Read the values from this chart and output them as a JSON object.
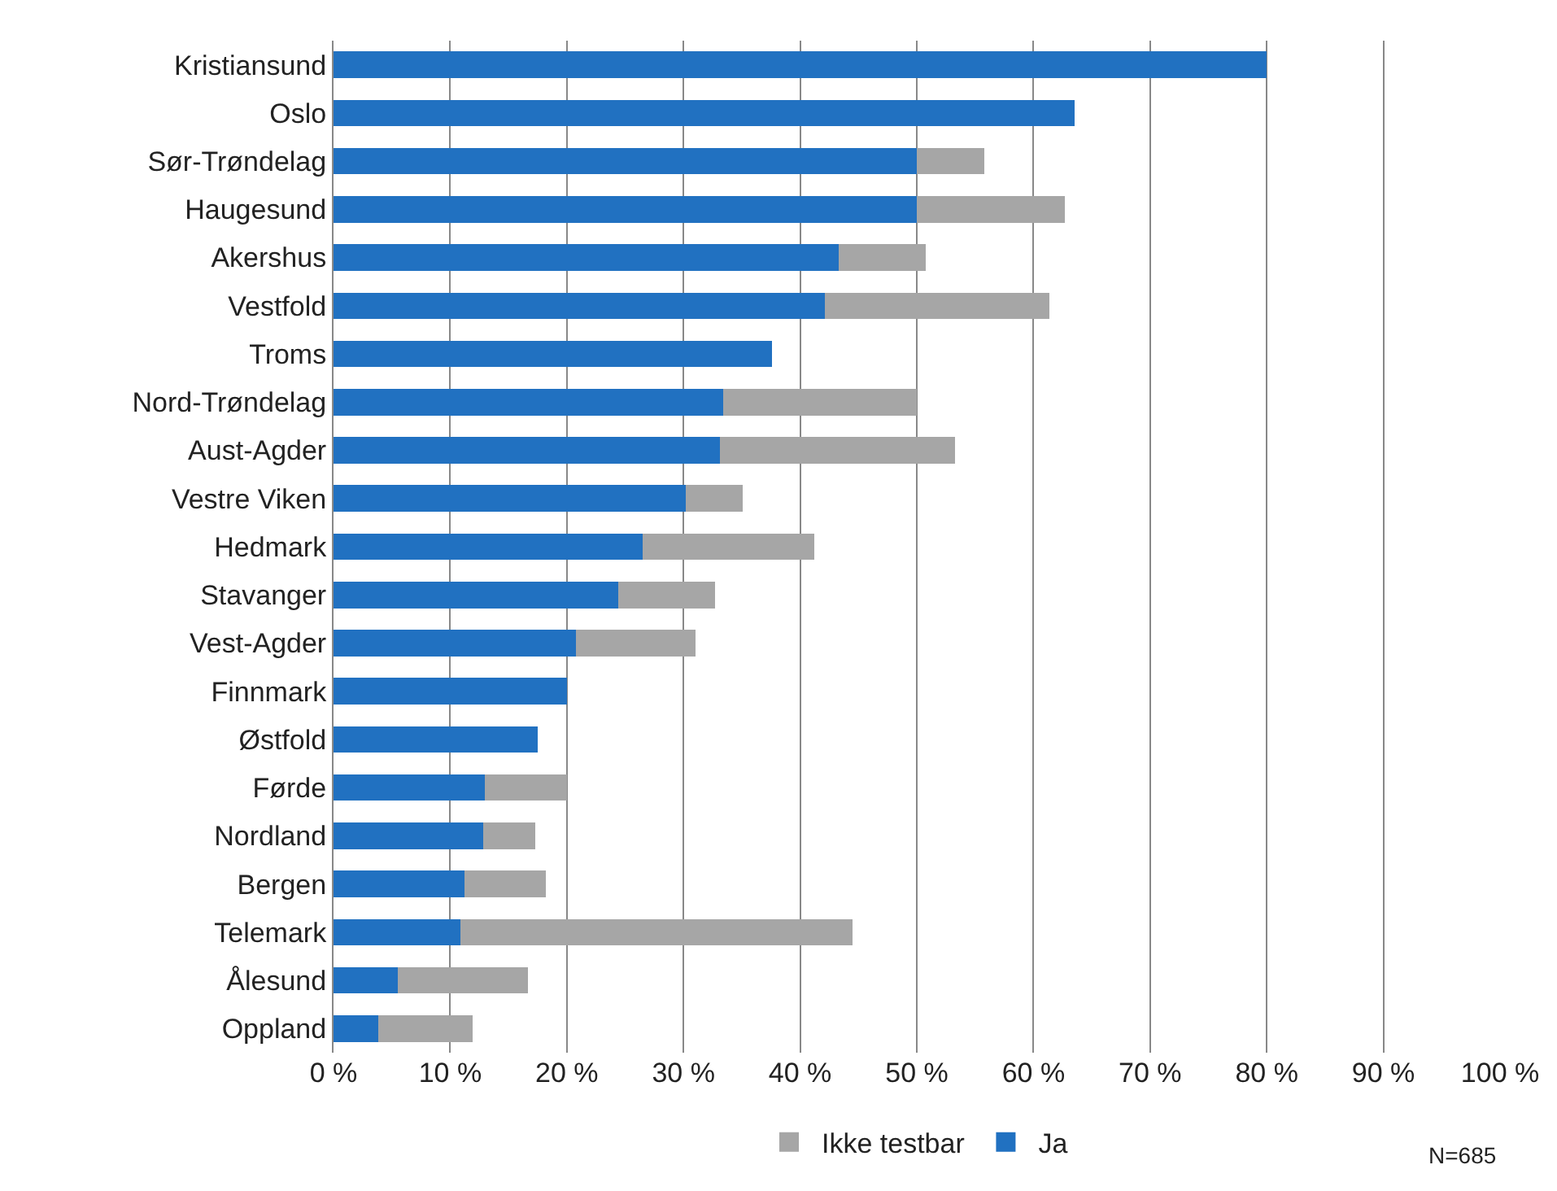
{
  "chart_data": {
    "type": "bar",
    "orientation": "horizontal",
    "stacked": true,
    "categories": [
      "Kristiansund",
      "Oslo",
      "Sør-Trøndelag",
      "Haugesund",
      "Akershus",
      "Vestfold",
      "Troms",
      "Nord-Trøndelag",
      "Aust-Agder",
      "Vestre Viken",
      "Hedmark",
      "Stavanger",
      "Vest-Agder",
      "Finnmark",
      "Østfold",
      "Førde",
      "Nordland",
      "Bergen",
      "Telemark",
      "Ålesund",
      "Oppland"
    ],
    "series": [
      {
        "name": "Ja",
        "color": "#2171c1",
        "values": [
          80,
          63.5,
          50,
          50,
          43.3,
          42.1,
          37.6,
          33.4,
          33.1,
          30.2,
          26.5,
          24.4,
          20.8,
          20,
          17.5,
          13,
          12.8,
          11.2,
          10.9,
          5.5,
          3.8
        ]
      },
      {
        "name": "Ikke testbar",
        "color": "#a6a6a6",
        "values": [
          0,
          0,
          5.8,
          12.7,
          7.5,
          19.3,
          0,
          16.6,
          20.2,
          4.9,
          14.7,
          8.3,
          10.2,
          0,
          0,
          7,
          4.5,
          7,
          33.6,
          11.2,
          8.1
        ]
      }
    ],
    "xlim": [
      0,
      100
    ],
    "xticks": [
      {
        "value": 0,
        "label": "0 %"
      },
      {
        "value": 10,
        "label": "10 %"
      },
      {
        "value": 20,
        "label": "20 %"
      },
      {
        "value": 30,
        "label": "30 %"
      },
      {
        "value": 40,
        "label": "40 %"
      },
      {
        "value": 50,
        "label": "50 %"
      },
      {
        "value": 60,
        "label": "60 %"
      },
      {
        "value": 70,
        "label": "70 %"
      },
      {
        "value": 80,
        "label": "80 %"
      },
      {
        "value": 90,
        "label": "90 %"
      },
      {
        "value": 100,
        "label": "100 %"
      }
    ],
    "grid": "x",
    "legend": "bottom",
    "annotations": [
      "N=685"
    ]
  }
}
